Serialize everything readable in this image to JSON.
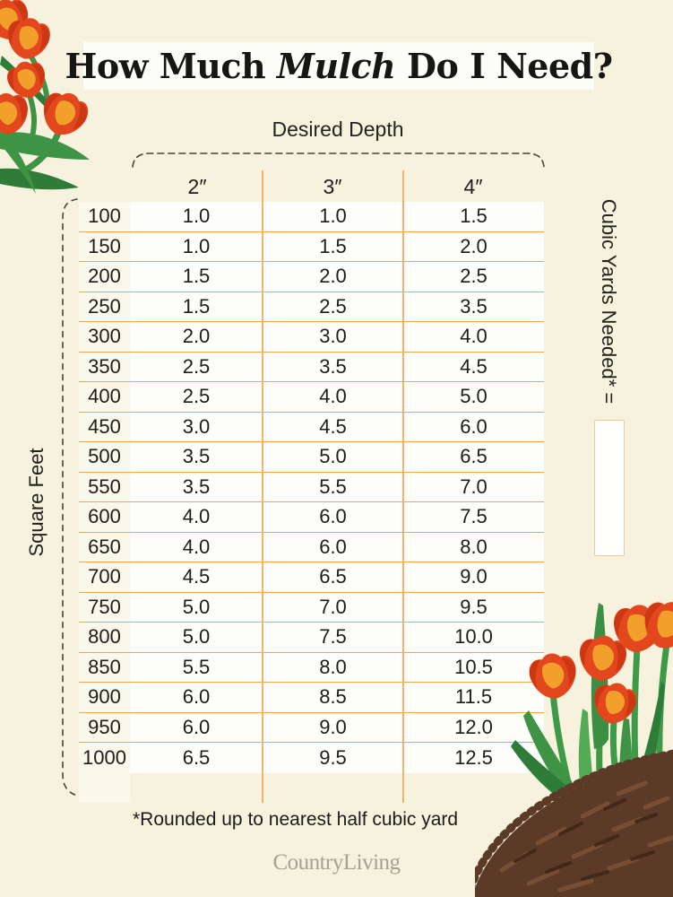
{
  "page": {
    "background_color": "#f6f2dd",
    "title_parts": {
      "pre": "How Much ",
      "italic": "Mulch",
      "post": " Do I Need?"
    },
    "colors": {
      "table_line_orange": "#f0a651",
      "table_cell_white": "#fdfdfa",
      "text_dark": "#1d1d1b",
      "brand_gray": "#a5a196",
      "tulip_red": "#e2471d",
      "tulip_dark_red": "#cd3713",
      "tulip_yellow": "#f1a12b",
      "leaf_green": "#3e9345",
      "mulch_brown": "#5b3a27"
    }
  },
  "chart_data": {
    "type": "table",
    "title": "How Much Mulch Do I Need?",
    "column_group_label": "Desired Depth",
    "row_group_label": "Square Feet",
    "output_label": "Cubic Yards Needed* =",
    "columns": [
      "2″",
      "3″",
      "4″"
    ],
    "rows": [
      [
        "100",
        "1.0",
        "1.0",
        "1.5"
      ],
      [
        "150",
        "1.0",
        "1.5",
        "2.0"
      ],
      [
        "200",
        "1.5",
        "2.0",
        "2.5"
      ],
      [
        "250",
        "1.5",
        "2.5",
        "3.5"
      ],
      [
        "300",
        "2.0",
        "3.0",
        "4.0"
      ],
      [
        "350",
        "2.5",
        "3.5",
        "4.5"
      ],
      [
        "400",
        "2.5",
        "4.0",
        "5.0"
      ],
      [
        "450",
        "3.0",
        "4.5",
        "6.0"
      ],
      [
        "500",
        "3.5",
        "5.0",
        "6.5"
      ],
      [
        "550",
        "3.5",
        "5.5",
        "7.0"
      ],
      [
        "600",
        "4.0",
        "6.0",
        "7.5"
      ],
      [
        "650",
        "4.0",
        "6.0",
        "8.0"
      ],
      [
        "700",
        "4.5",
        "6.5",
        "9.0"
      ],
      [
        "750",
        "5.0",
        "7.0",
        "9.5"
      ],
      [
        "800",
        "5.0",
        "7.5",
        "10.0"
      ],
      [
        "850",
        "5.5",
        "8.0",
        "10.5"
      ],
      [
        "900",
        "6.0",
        "8.5",
        "11.5"
      ],
      [
        "950",
        "6.0",
        "9.0",
        "12.0"
      ],
      [
        "1000",
        "6.5",
        "9.5",
        "12.5"
      ]
    ],
    "footnote": "*Rounded up to nearest half cubic yard",
    "brand": "CountryLiving"
  }
}
